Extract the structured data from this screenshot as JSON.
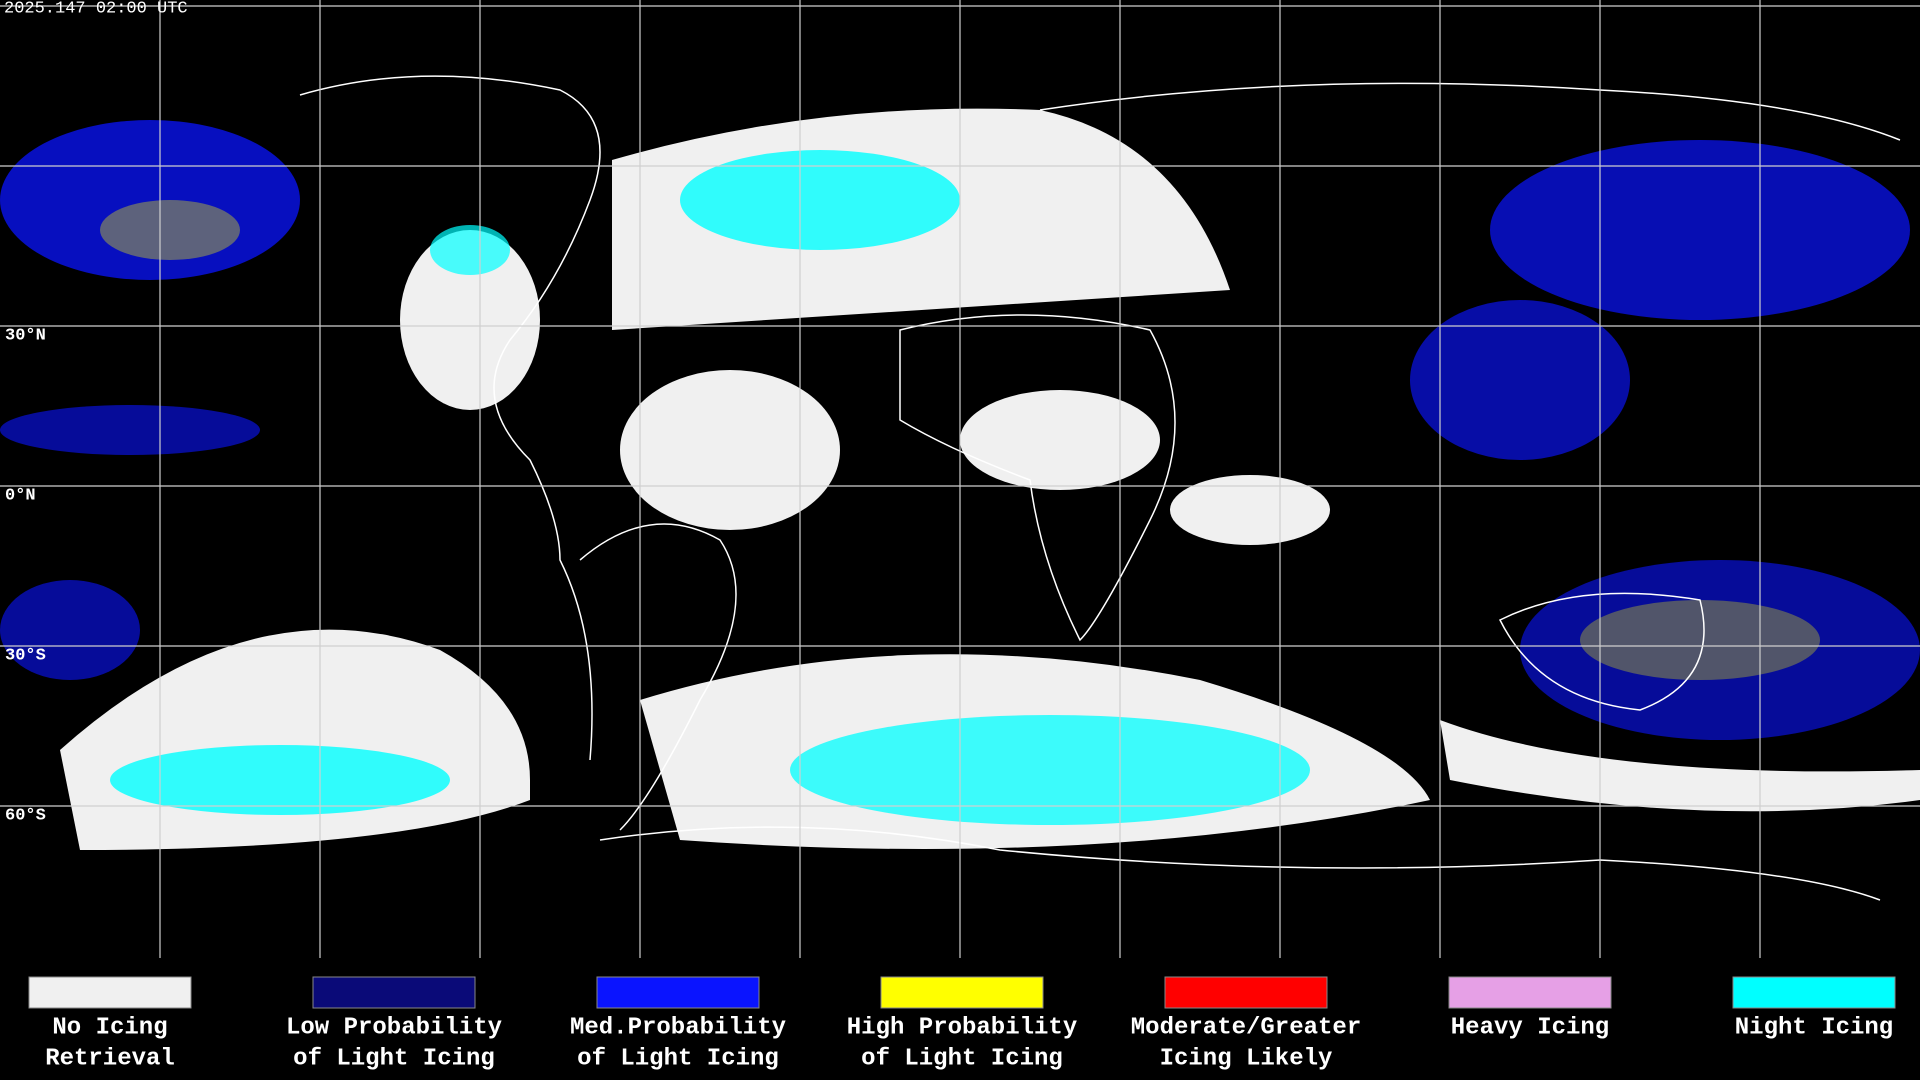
{
  "header": {
    "timestamp": "2025.147 02:00 UTC"
  },
  "map": {
    "latitude_labels": [
      "30°N",
      "0°N",
      "30°S",
      "60°S"
    ]
  },
  "legend": [
    {
      "lines": [
        "No Icing",
        "Retrieval"
      ],
      "color": "#f0f0f0"
    },
    {
      "lines": [
        "Low Probability",
        "of Light Icing"
      ],
      "color": "#0a0a78"
    },
    {
      "lines": [
        "Med.Probability",
        "of Light Icing"
      ],
      "color": "#0a14ff"
    },
    {
      "lines": [
        "High Probability",
        "of Light Icing"
      ],
      "color": "#ffff00"
    },
    {
      "lines": [
        "Moderate/Greater",
        "Icing Likely"
      ],
      "color": "#ff0000"
    },
    {
      "lines": [
        "Heavy Icing"
      ],
      "color": "#e6a0e6"
    },
    {
      "lines": [
        "Night Icing"
      ],
      "color": "#00ffff"
    }
  ]
}
